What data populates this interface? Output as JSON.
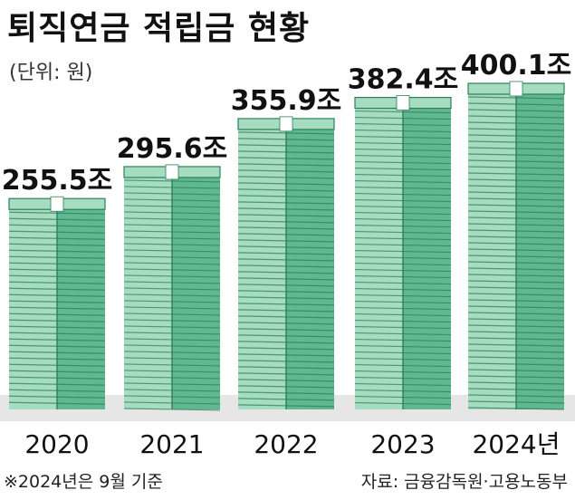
{
  "title": "퇴직연금 적립금 현황",
  "unit_label": "(단위: 원)",
  "footnote": "※2024년은 9월 기준",
  "source": {
    "label": "자료:",
    "text": "금융감독원·고용노동부"
  },
  "colors": {
    "bill_light": "#a6dcbf",
    "bill_dark": "#5fb88f",
    "bill_line": "#2f7e5b",
    "band": "#ffffff",
    "floor": "#e6e6e6"
  },
  "chart_data": {
    "type": "bar",
    "categories": [
      "2020",
      "2021",
      "2022",
      "2023",
      "2024년"
    ],
    "values": [
      255.5,
      295.6,
      355.9,
      382.4,
      400.1
    ],
    "value_labels": [
      "255.5조",
      "295.6조",
      "355.9조",
      "382.4조",
      "400.1조"
    ],
    "unit": "조",
    "ylim": [
      0,
      450
    ]
  }
}
